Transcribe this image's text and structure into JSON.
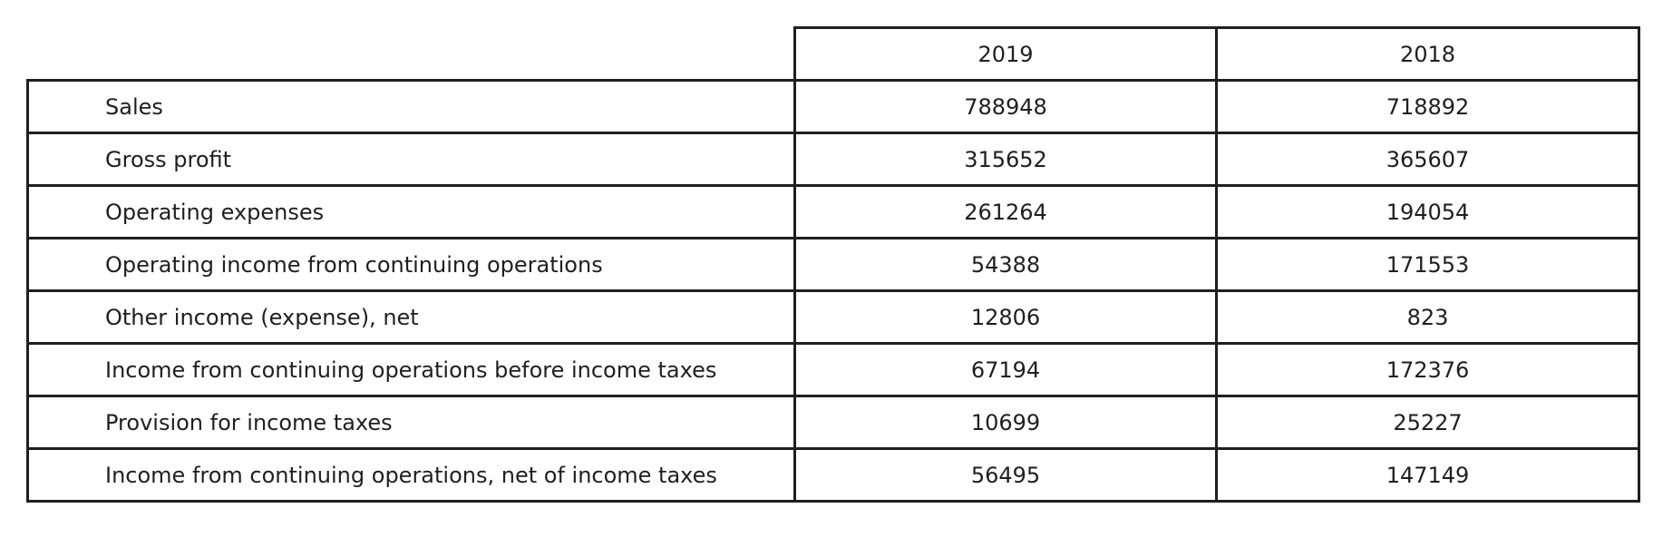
{
  "table": {
    "columns": [
      "",
      "2019",
      "2018"
    ],
    "rows": [
      {
        "label": "Sales",
        "y2019": "788948",
        "y2018": "718892"
      },
      {
        "label": "Gross profit",
        "y2019": "315652",
        "y2018": "365607"
      },
      {
        "label": "Operating expenses",
        "y2019": "261264",
        "y2018": "194054"
      },
      {
        "label": "Operating income from continuing operations",
        "y2019": "54388",
        "y2018": "171553"
      },
      {
        "label": "Other income (expense), net",
        "y2019": "12806",
        "y2018": "823"
      },
      {
        "label": "Income from continuing operations before income taxes",
        "y2019": "67194",
        "y2018": "172376"
      },
      {
        "label": "Provision for income taxes",
        "y2019": "10699",
        "y2018": "25227"
      },
      {
        "label": "Income from continuing operations, net of income taxes",
        "y2019": "56495",
        "y2018": "147149"
      }
    ]
  }
}
